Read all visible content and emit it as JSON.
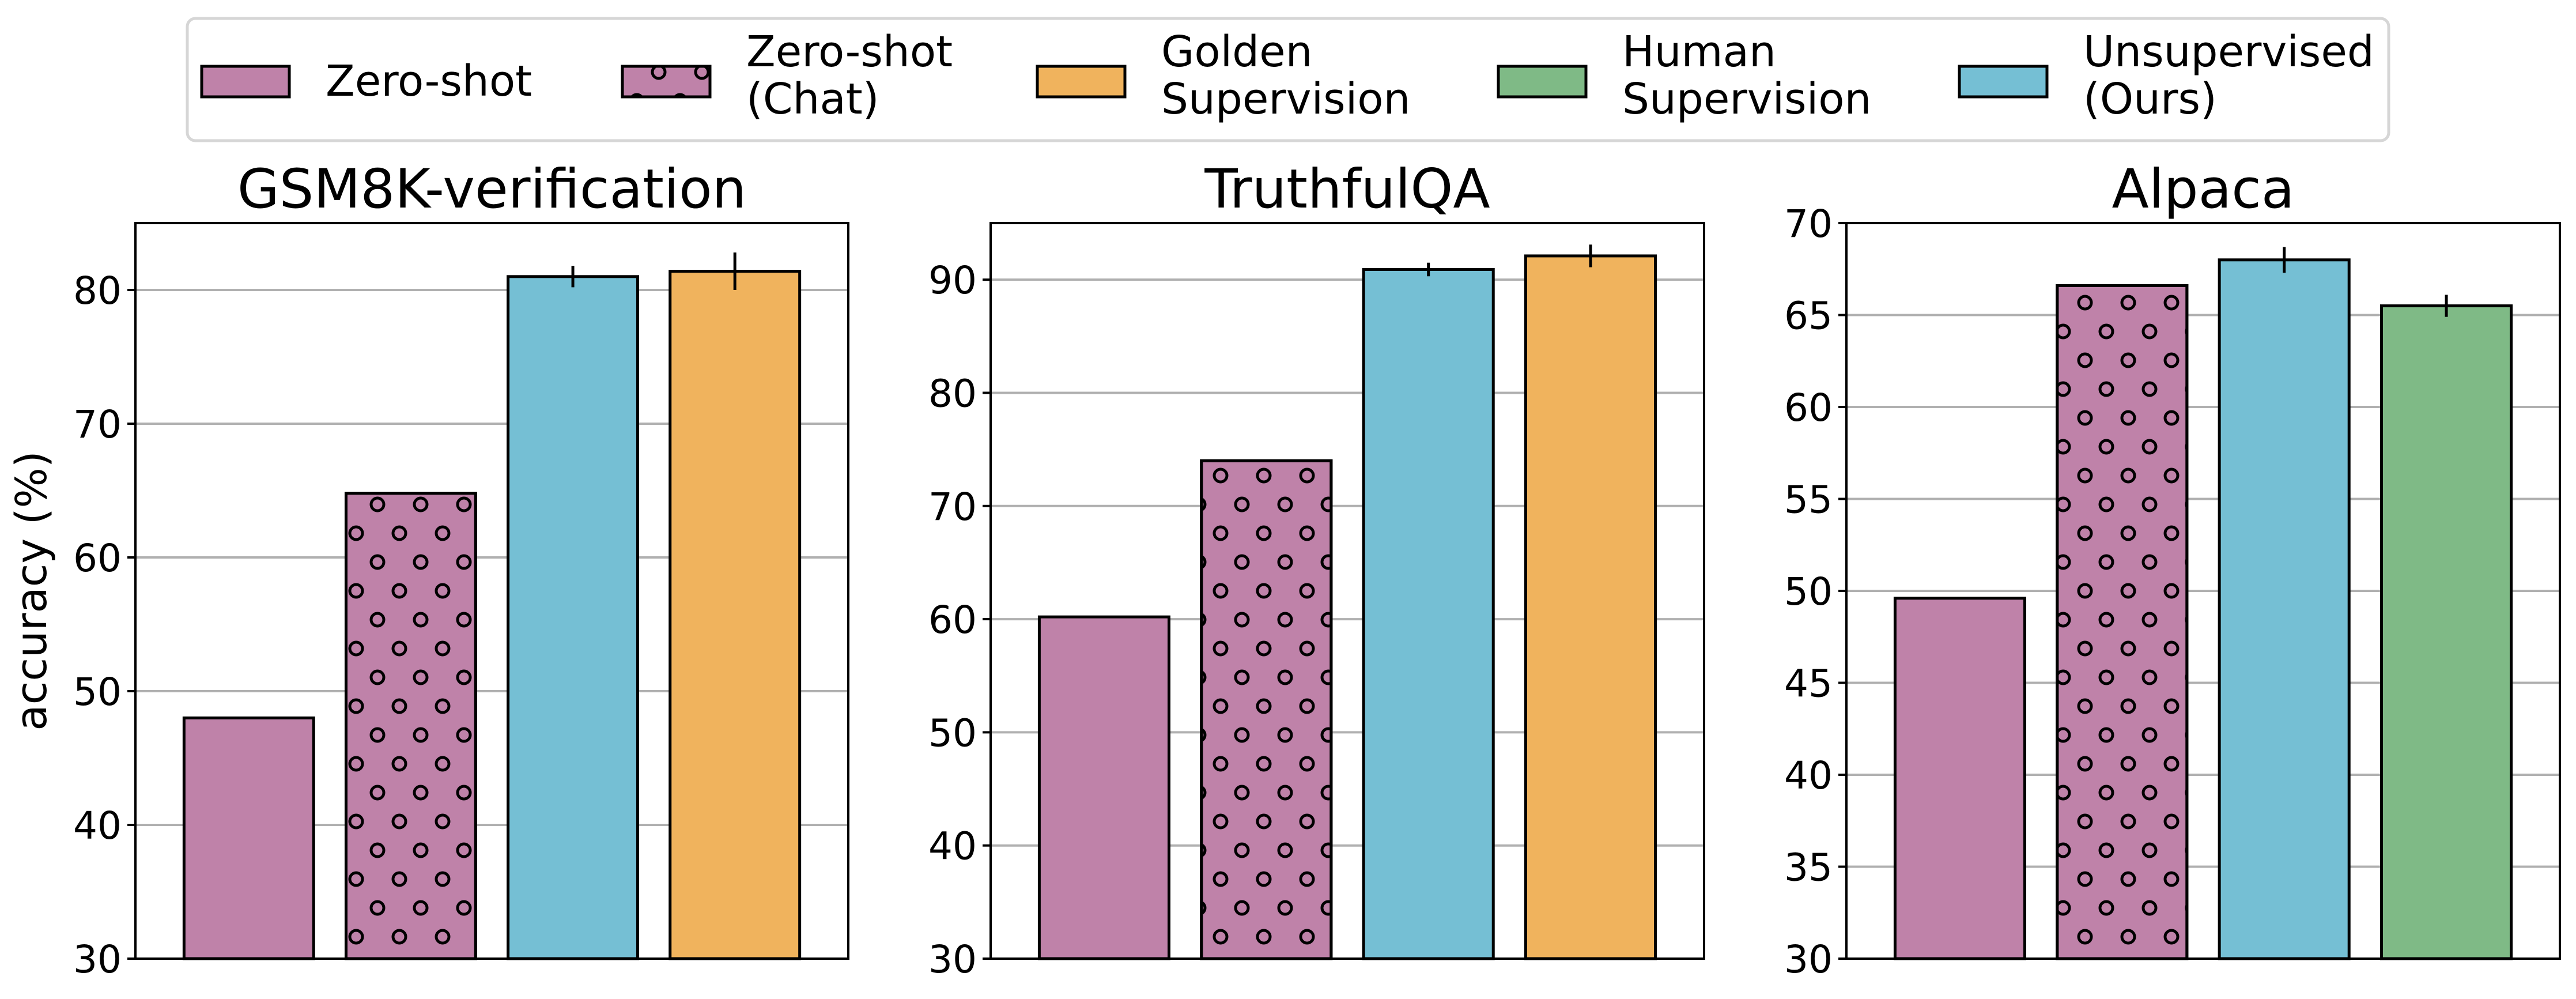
{
  "legend": {
    "location": "top-center",
    "entries": [
      {
        "key": "zero_shot",
        "label_lines": [
          "Zero-shot"
        ],
        "color": "#BF82A9",
        "hatch": "none"
      },
      {
        "key": "zero_shot_chat",
        "label_lines": [
          "Zero-shot",
          "(Chat)"
        ],
        "color": "#BF82A9",
        "hatch": "circles"
      },
      {
        "key": "golden",
        "label_lines": [
          "Golden",
          "Supervision"
        ],
        "color": "#F0B35D",
        "hatch": "none"
      },
      {
        "key": "human",
        "label_lines": [
          "Human",
          "Supervision"
        ],
        "color": "#7FBA86",
        "hatch": "none"
      },
      {
        "key": "unsupervised",
        "label_lines": [
          "Unsupervised",
          "(Ours)"
        ],
        "color": "#75BFD4",
        "hatch": "none"
      }
    ]
  },
  "chart_data": [
    {
      "type": "bar",
      "title": "GSM8K-verification",
      "xlabel": "",
      "ylabel": "accuracy (%)",
      "ylim": [
        30,
        85
      ],
      "yticks": [
        30,
        40,
        50,
        60,
        70,
        80
      ],
      "grid": "y",
      "bars": [
        {
          "series": "zero_shot",
          "value": 48.0,
          "error": null
        },
        {
          "series": "zero_shot_chat",
          "value": 64.8,
          "error": null
        },
        {
          "series": "unsupervised",
          "value": 81.0,
          "error": 0.8
        },
        {
          "series": "golden",
          "value": 81.4,
          "error": 1.4
        }
      ]
    },
    {
      "type": "bar",
      "title": "TruthfulQA",
      "xlabel": "",
      "ylabel": "",
      "ylim": [
        30,
        95
      ],
      "yticks": [
        30,
        40,
        50,
        60,
        70,
        80,
        90
      ],
      "grid": "y",
      "bars": [
        {
          "series": "zero_shot",
          "value": 60.2,
          "error": null
        },
        {
          "series": "zero_shot_chat",
          "value": 74.0,
          "error": null
        },
        {
          "series": "unsupervised",
          "value": 90.9,
          "error": 0.6
        },
        {
          "series": "golden",
          "value": 92.1,
          "error": 1.0
        }
      ]
    },
    {
      "type": "bar",
      "title": "Alpaca",
      "xlabel": "",
      "ylabel": "",
      "ylim": [
        30,
        70
      ],
      "yticks": [
        30,
        35,
        40,
        45,
        50,
        55,
        60,
        65,
        70
      ],
      "grid": "y",
      "bars": [
        {
          "series": "zero_shot",
          "value": 49.6,
          "error": null
        },
        {
          "series": "zero_shot_chat",
          "value": 66.6,
          "error": null
        },
        {
          "series": "unsupervised",
          "value": 68.0,
          "error": 0.7
        },
        {
          "series": "human",
          "value": 65.5,
          "error": 0.6
        }
      ]
    }
  ]
}
